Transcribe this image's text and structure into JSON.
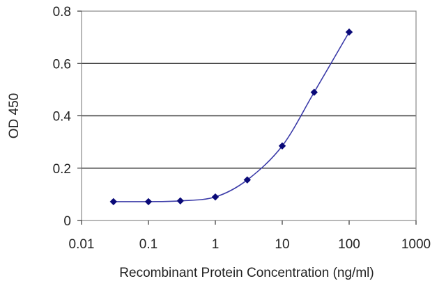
{
  "chart_data": {
    "type": "line",
    "title": "",
    "xlabel": "Recombinant Protein Concentration (ng/ml)",
    "ylabel": "OD 450",
    "x_scale": "log",
    "xlim": [
      0.01,
      1000
    ],
    "ylim": [
      0,
      0.8
    ],
    "x_ticks": [
      "0.01",
      "0.1",
      "1",
      "10",
      "100",
      "1000"
    ],
    "y_ticks": [
      "0",
      "0.2",
      "0.4",
      "0.6",
      "0.8"
    ],
    "grid": "horizontal",
    "series": [
      {
        "points": [
          {
            "x": 0.03,
            "y": 0.072
          },
          {
            "x": 0.1,
            "y": 0.072
          },
          {
            "x": 0.3,
            "y": 0.075
          },
          {
            "x": 1,
            "y": 0.09
          },
          {
            "x": 3,
            "y": 0.155
          },
          {
            "x": 10,
            "y": 0.285
          },
          {
            "x": 30,
            "y": 0.49
          },
          {
            "x": 100,
            "y": 0.72
          }
        ]
      }
    ],
    "colors": {
      "line": "#3a3aa8",
      "marker": "#0a0a78",
      "grid": "#3a3a3a",
      "plot_border": "#888888",
      "background": "#ffffff"
    }
  }
}
